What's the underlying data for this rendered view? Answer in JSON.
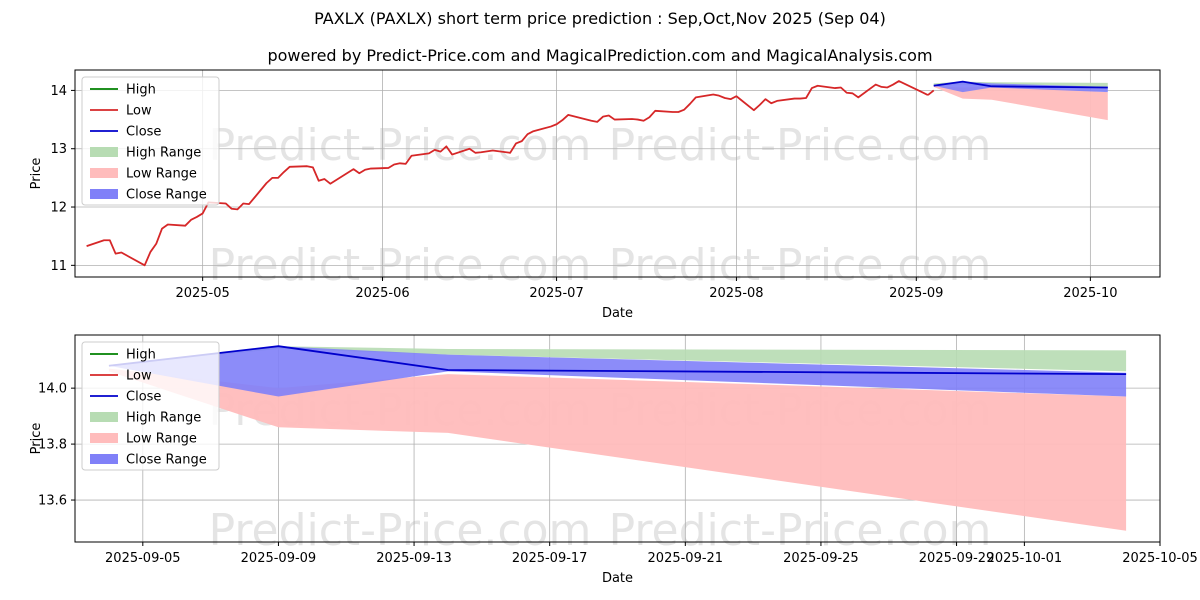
{
  "title": "PAXLX (PAXLX) short term price prediction : Sep,Oct,Nov 2025 (Sep 04)",
  "subtitle": "powered by Predict-Price.com and MagicalPrediction.com and MagicalAnalysis.com",
  "watermark": "Predict-Price.com",
  "colors": {
    "high": "#008000",
    "low": "#d62728",
    "close": "#0000cc",
    "high_range": "#b7dcb3",
    "low_range": "#ffbcbc",
    "close_range": "#8080f8",
    "watermark": "#e4e4e4",
    "grid": "#b0b0b0"
  },
  "chart_data": [
    {
      "type": "line",
      "xlabel": "Date",
      "ylabel": "Price",
      "xlim": [
        "2025-04-09",
        "2025-10-13"
      ],
      "ylim": [
        10.8,
        14.35
      ],
      "x_ticks": [
        "2025-05-01",
        "2025-06-01",
        "2025-07-01",
        "2025-08-01",
        "2025-09-01",
        "2025-10-01"
      ],
      "x_tick_labels": [
        "2025-05",
        "2025-06",
        "2025-07",
        "2025-08",
        "2025-09",
        "2025-10"
      ],
      "y_ticks": [
        11,
        12,
        13,
        14
      ],
      "y_tick_labels": [
        "11",
        "12",
        "13",
        "14"
      ],
      "grid": true,
      "legend_position": "top-left",
      "legend": [
        "High",
        "Low",
        "Close",
        "High Range",
        "Low Range",
        "Close Range"
      ],
      "history": {
        "name": "Low",
        "x": [
          "2025-04-11",
          "2025-04-14",
          "2025-04-15",
          "2025-04-16",
          "2025-04-17",
          "2025-04-21",
          "2025-04-22",
          "2025-04-23",
          "2025-04-24",
          "2025-04-25",
          "2025-04-28",
          "2025-04-29",
          "2025-04-30",
          "2025-05-01",
          "2025-05-02",
          "2025-05-05",
          "2025-05-06",
          "2025-05-07",
          "2025-05-08",
          "2025-05-09",
          "2025-05-12",
          "2025-05-13",
          "2025-05-14",
          "2025-05-15",
          "2025-05-16",
          "2025-05-19",
          "2025-05-20",
          "2025-05-21",
          "2025-05-22",
          "2025-05-23",
          "2025-05-27",
          "2025-05-28",
          "2025-05-29",
          "2025-05-30",
          "2025-06-02",
          "2025-06-03",
          "2025-06-04",
          "2025-06-05",
          "2025-06-06",
          "2025-06-09",
          "2025-06-10",
          "2025-06-11",
          "2025-06-12",
          "2025-06-13",
          "2025-06-16",
          "2025-06-17",
          "2025-06-18",
          "2025-06-20",
          "2025-06-23",
          "2025-06-24",
          "2025-06-25",
          "2025-06-26",
          "2025-06-27",
          "2025-06-30",
          "2025-07-01",
          "2025-07-02",
          "2025-07-03",
          "2025-07-07",
          "2025-07-08",
          "2025-07-09",
          "2025-07-10",
          "2025-07-11",
          "2025-07-14",
          "2025-07-15",
          "2025-07-16",
          "2025-07-17",
          "2025-07-18",
          "2025-07-21",
          "2025-07-22",
          "2025-07-23",
          "2025-07-24",
          "2025-07-25",
          "2025-07-28",
          "2025-07-29",
          "2025-07-30",
          "2025-07-31",
          "2025-08-01",
          "2025-08-04",
          "2025-08-05",
          "2025-08-06",
          "2025-08-07",
          "2025-08-08",
          "2025-08-11",
          "2025-08-12",
          "2025-08-13",
          "2025-08-14",
          "2025-08-15",
          "2025-08-18",
          "2025-08-19",
          "2025-08-20",
          "2025-08-21",
          "2025-08-22",
          "2025-08-25",
          "2025-08-26",
          "2025-08-27",
          "2025-08-28",
          "2025-08-29",
          "2025-09-02",
          "2025-09-03"
        ],
        "y": [
          11.33,
          11.43,
          11.43,
          11.2,
          11.22,
          11.0,
          11.23,
          11.37,
          11.63,
          11.7,
          11.68,
          11.78,
          11.83,
          11.89,
          12.08,
          12.06,
          11.97,
          11.96,
          12.06,
          12.05,
          12.41,
          12.5,
          12.5,
          12.6,
          12.69,
          12.7,
          12.68,
          12.45,
          12.48,
          12.4,
          12.65,
          12.58,
          12.64,
          12.66,
          12.67,
          12.73,
          12.75,
          12.74,
          12.88,
          12.92,
          12.98,
          12.95,
          13.04,
          12.9,
          13.0,
          12.93,
          12.94,
          12.97,
          12.93,
          13.09,
          13.13,
          13.25,
          13.3,
          13.38,
          13.42,
          13.49,
          13.58,
          13.48,
          13.46,
          13.55,
          13.57,
          13.5,
          13.51,
          13.5,
          13.48,
          13.54,
          13.65,
          13.63,
          13.63,
          13.67,
          13.77,
          13.88,
          13.93,
          13.91,
          13.87,
          13.85,
          13.9,
          13.66,
          13.75,
          13.85,
          13.78,
          13.82,
          13.86,
          13.86,
          13.87,
          14.04,
          14.08,
          14.04,
          14.05,
          13.96,
          13.95,
          13.88,
          14.1,
          14.06,
          14.05,
          14.1,
          14.16,
          13.97,
          13.92
        ],
        "tail_x": [
          "2025-09-03",
          "2025-09-04"
        ],
        "tail_y": [
          13.92,
          14.0
        ]
      },
      "forecast": {
        "x": [
          "2025-09-04",
          "2025-09-09",
          "2025-09-14",
          "2025-10-04"
        ],
        "close": [
          14.08,
          14.15,
          14.07,
          14.05
        ],
        "high_range_upper": [
          14.12,
          14.15,
          14.14,
          14.13
        ],
        "high_range_lower": [
          14.08,
          14.1,
          14.07,
          14.05
        ],
        "low_range_upper": [
          14.07,
          14.05,
          14.07,
          13.97
        ],
        "low_range_lower": [
          14.06,
          13.86,
          13.84,
          13.49
        ],
        "close_range_upper": [
          14.1,
          14.15,
          14.12,
          14.06
        ],
        "close_range_lower": [
          14.08,
          13.97,
          14.05,
          13.97
        ]
      }
    },
    {
      "type": "line",
      "xlabel": "Date",
      "ylabel": "Price",
      "xlim": [
        "2025-09-03",
        "2025-10-05"
      ],
      "ylim": [
        13.45,
        14.19
      ],
      "x_ticks": [
        "2025-09-05",
        "2025-09-09",
        "2025-09-13",
        "2025-09-17",
        "2025-09-21",
        "2025-09-25",
        "2025-09-29",
        "2025-10-01",
        "2025-10-05"
      ],
      "x_tick_labels": [
        "2025-09-05",
        "2025-09-09",
        "2025-09-13",
        "2025-09-17",
        "2025-09-21",
        "2025-09-25",
        "2025-09-29",
        "2025-10-01",
        "2025-10-05"
      ],
      "y_ticks": [
        13.6,
        13.8,
        14.0
      ],
      "y_tick_labels": [
        "13.6",
        "13.8",
        "14.0"
      ],
      "grid": true,
      "legend_position": "top-left",
      "legend": [
        "High",
        "Low",
        "Close",
        "High Range",
        "Low Range",
        "Close Range"
      ],
      "forecast": {
        "x": [
          "2025-09-04",
          "2025-09-09",
          "2025-09-14",
          "2025-10-04"
        ],
        "close": [
          14.08,
          14.15,
          14.065,
          14.05
        ],
        "high_range_upper": [
          14.08,
          14.15,
          14.14,
          14.135
        ],
        "high_range_lower": [
          14.08,
          14.14,
          14.12,
          14.06
        ],
        "low_range_upper": [
          14.07,
          14.0,
          14.05,
          13.97
        ],
        "low_range_lower": [
          14.06,
          13.86,
          13.84,
          13.49
        ],
        "close_range_upper": [
          14.08,
          14.15,
          14.12,
          14.055
        ],
        "close_range_lower": [
          14.08,
          13.97,
          14.06,
          13.97
        ]
      }
    }
  ]
}
